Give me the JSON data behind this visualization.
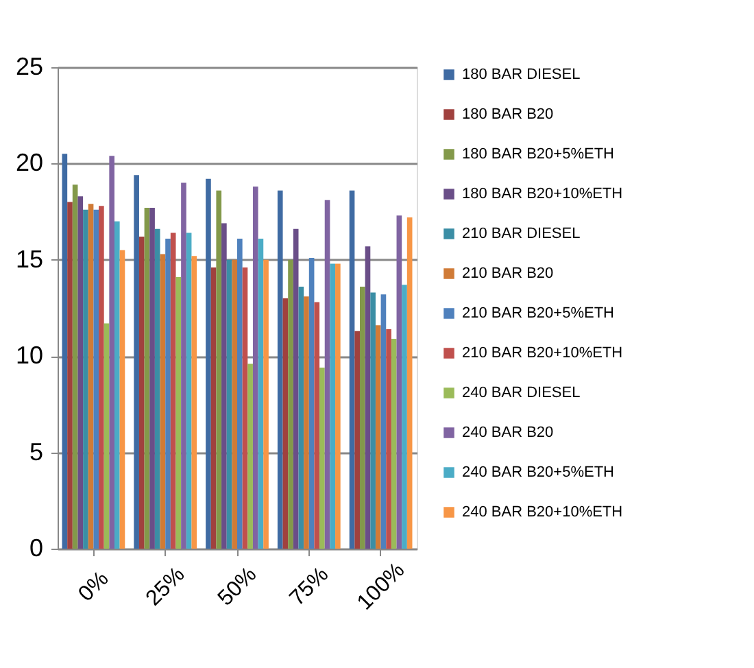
{
  "chart_data": {
    "type": "bar",
    "categories": [
      "0%",
      "25%",
      "50%",
      "75%",
      "100%"
    ],
    "series": [
      {
        "name": "180 BAR DIESEL",
        "color": "#3f6ba3",
        "values": [
          20.5,
          19.4,
          19.2,
          18.6,
          18.6
        ]
      },
      {
        "name": "180 BAR B20",
        "color": "#a0413e",
        "values": [
          18.0,
          16.2,
          14.6,
          13.0,
          11.3
        ]
      },
      {
        "name": "180 BAR B20+5%ETH",
        "color": "#83994a",
        "values": [
          18.9,
          17.7,
          18.6,
          15.0,
          13.6
        ]
      },
      {
        "name": "180 BAR B20+10%ETH",
        "color": "#6a4e88",
        "values": [
          18.3,
          17.7,
          16.9,
          16.6,
          15.7
        ]
      },
      {
        "name": "210 BAR DIESEL",
        "color": "#3b8ea5",
        "values": [
          17.6,
          16.6,
          15.0,
          13.6,
          13.3
        ]
      },
      {
        "name": "210 BAR B20",
        "color": "#d07b37",
        "values": [
          17.9,
          15.3,
          15.0,
          13.1,
          11.6
        ]
      },
      {
        "name": "210 BAR B20+5%ETH",
        "color": "#4f81bd",
        "values": [
          17.6,
          16.1,
          16.1,
          15.1,
          13.2
        ]
      },
      {
        "name": "210 BAR B20+10%ETH",
        "color": "#c0504d",
        "values": [
          17.8,
          16.4,
          14.6,
          12.8,
          11.4
        ]
      },
      {
        "name": "240 BAR DIESEL",
        "color": "#9bbb59",
        "values": [
          11.7,
          14.1,
          9.6,
          9.4,
          10.9
        ]
      },
      {
        "name": "240 BAR B20",
        "color": "#8064a2",
        "values": [
          20.4,
          19.0,
          18.8,
          18.1,
          17.3
        ]
      },
      {
        "name": "240 BAR B20+5%ETH",
        "color": "#4bacc6",
        "values": [
          17.0,
          16.4,
          16.1,
          14.8,
          13.7
        ]
      },
      {
        "name": "240 BAR B20+10%ETH",
        "color": "#f79646",
        "values": [
          15.5,
          15.2,
          15.0,
          14.8,
          17.2
        ]
      }
    ],
    "ylim": [
      0,
      25
    ],
    "yticks": [
      0,
      5,
      10,
      15,
      20,
      25
    ],
    "grid": "y",
    "legend": "right"
  }
}
